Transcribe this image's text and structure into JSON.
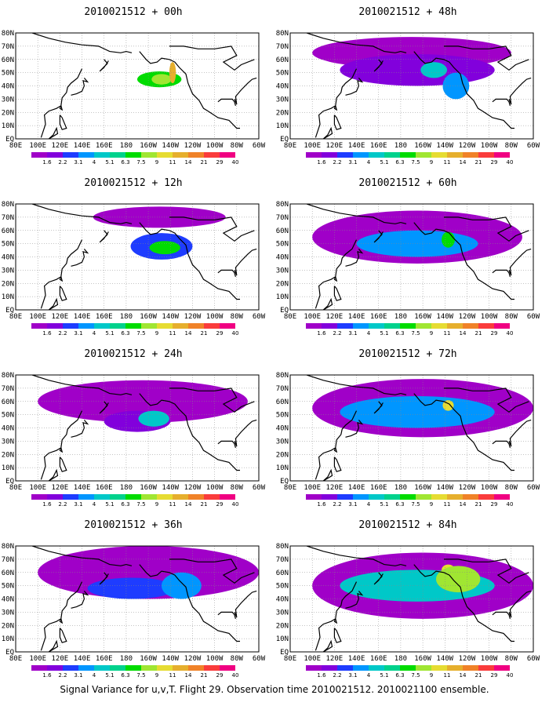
{
  "footer": "Signal Variance for u,v,T. Flight 29. Observation time 2010021512. 2010021100 ensemble.",
  "lat_labels": [
    "80N",
    "70N",
    "60N",
    "50N",
    "40N",
    "30N",
    "20N",
    "10N",
    "EQ"
  ],
  "lon_labels": [
    "80E",
    "100E",
    "120E",
    "140E",
    "160E",
    "180",
    "160W",
    "140W",
    "120W",
    "100W",
    "80W",
    "60W"
  ],
  "colorbar": {
    "levels": [
      "1.6",
      "2.2",
      "3.1",
      "4",
      "5.1",
      "6.3",
      "7.5",
      "9",
      "11",
      "14",
      "21",
      "29",
      "40"
    ],
    "colors": [
      "#a000c8",
      "#8200dc",
      "#1e3cff",
      "#0096ff",
      "#00c8c8",
      "#00d28c",
      "#00dc00",
      "#a0e632",
      "#e6dc32",
      "#e6af2d",
      "#f08228",
      "#fa3c3c",
      "#f00082"
    ]
  },
  "panels": [
    {
      "id": "p00",
      "title": "2010021512 + 00h",
      "blobs": [
        {
          "c": 6,
          "lon": -150,
          "lat": 45,
          "rx": 20,
          "ry": 6
        },
        {
          "c": 7,
          "lon": -148,
          "lat": 45,
          "rx": 9,
          "ry": 4
        },
        {
          "c": 9,
          "lon": -138,
          "lat": 50,
          "rx": 3,
          "ry": 8
        }
      ]
    },
    {
      "id": "p48",
      "title": "2010021512 + 48h",
      "blobs": [
        {
          "c": 0,
          "lon": -170,
          "lat": 65,
          "rx": 90,
          "ry": 12
        },
        {
          "c": 1,
          "lon": -165,
          "lat": 52,
          "rx": 70,
          "ry": 12
        },
        {
          "c": 4,
          "lon": -150,
          "lat": 52,
          "rx": 12,
          "ry": 6
        },
        {
          "c": 3,
          "lon": -130,
          "lat": 40,
          "rx": 12,
          "ry": 10
        }
      ]
    },
    {
      "id": "p12",
      "title": "2010021512 + 12h",
      "blobs": [
        {
          "c": 0,
          "lon": -150,
          "lat": 70,
          "rx": 60,
          "ry": 8
        },
        {
          "c": 2,
          "lon": -148,
          "lat": 48,
          "rx": 28,
          "ry": 10
        },
        {
          "c": 6,
          "lon": -145,
          "lat": 47,
          "rx": 14,
          "ry": 5
        }
      ]
    },
    {
      "id": "p60",
      "title": "2010021512 + 60h",
      "blobs": [
        {
          "c": 0,
          "lon": -165,
          "lat": 55,
          "rx": 95,
          "ry": 20
        },
        {
          "c": 3,
          "lon": -165,
          "lat": 50,
          "rx": 55,
          "ry": 10
        },
        {
          "c": 6,
          "lon": -137,
          "lat": 53,
          "rx": 6,
          "ry": 6
        }
      ]
    },
    {
      "id": "p24",
      "title": "2010021512 + 24h",
      "blobs": [
        {
          "c": 0,
          "lon": -165,
          "lat": 60,
          "rx": 95,
          "ry": 16
        },
        {
          "c": 1,
          "lon": -170,
          "lat": 45,
          "rx": 30,
          "ry": 8
        },
        {
          "c": 4,
          "lon": -155,
          "lat": 47,
          "rx": 14,
          "ry": 6
        }
      ]
    },
    {
      "id": "p72",
      "title": "2010021512 + 72h",
      "blobs": [
        {
          "c": 0,
          "lon": -160,
          "lat": 55,
          "rx": 100,
          "ry": 22
        },
        {
          "c": 3,
          "lon": -165,
          "lat": 52,
          "rx": 70,
          "ry": 12
        },
        {
          "c": 8,
          "lon": -137,
          "lat": 57,
          "rx": 5,
          "ry": 4
        }
      ]
    },
    {
      "id": "p36",
      "title": "2010021512 + 36h",
      "blobs": [
        {
          "c": 0,
          "lon": -160,
          "lat": 60,
          "rx": 100,
          "ry": 20
        },
        {
          "c": 2,
          "lon": -175,
          "lat": 48,
          "rx": 40,
          "ry": 8
        },
        {
          "c": 3,
          "lon": -130,
          "lat": 50,
          "rx": 18,
          "ry": 10
        }
      ]
    },
    {
      "id": "p84",
      "title": "2010021512 + 84h",
      "blobs": [
        {
          "c": 0,
          "lon": -160,
          "lat": 50,
          "rx": 100,
          "ry": 25
        },
        {
          "c": 4,
          "lon": -165,
          "lat": 50,
          "rx": 70,
          "ry": 12
        },
        {
          "c": 8,
          "lon": -137,
          "lat": 62,
          "rx": 6,
          "ry": 4
        },
        {
          "c": 7,
          "lon": -128,
          "lat": 55,
          "rx": 20,
          "ry": 10
        }
      ]
    }
  ]
}
